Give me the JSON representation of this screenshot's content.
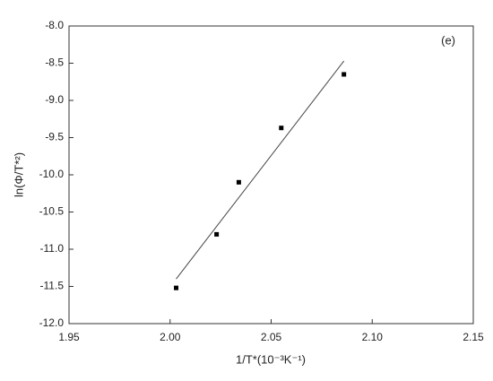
{
  "chart_data": {
    "type": "scatter",
    "annotation": "(e)",
    "xlabel": "1/T*(10⁻³K⁻¹)",
    "ylabel": "ln(Φ/T*²)",
    "xlim": [
      1.95,
      2.15
    ],
    "xticks": [
      1.95,
      {
        "value": 2.0,
        "label": "2.00"
      },
      2.05,
      {
        "value": 2.1,
        "label": "2.10"
      },
      2.15
    ],
    "ylim": [
      -12.0,
      -8.0
    ],
    "yticks": [
      {
        "value": -12.0,
        "label": "-12.0"
      },
      -11.5,
      {
        "value": -11.0,
        "label": "-11.0"
      },
      -10.5,
      {
        "value": -10.0,
        "label": "-10.0"
      },
      -9.5,
      {
        "value": -9.0,
        "label": "-9.0"
      },
      -8.5,
      {
        "value": -8.0,
        "label": "-8.0"
      }
    ],
    "series": [
      {
        "type": "scatter",
        "color": "#000000",
        "x": [
          2.003,
          2.023,
          2.034,
          2.055,
          2.086
        ],
        "values": [
          -11.52,
          -10.8,
          -10.1,
          -9.37,
          -8.65
        ]
      },
      {
        "type": "line",
        "color": "#444444",
        "x": [
          2.003,
          2.086
        ],
        "values": [
          -11.4,
          -8.47
        ]
      }
    ]
  }
}
